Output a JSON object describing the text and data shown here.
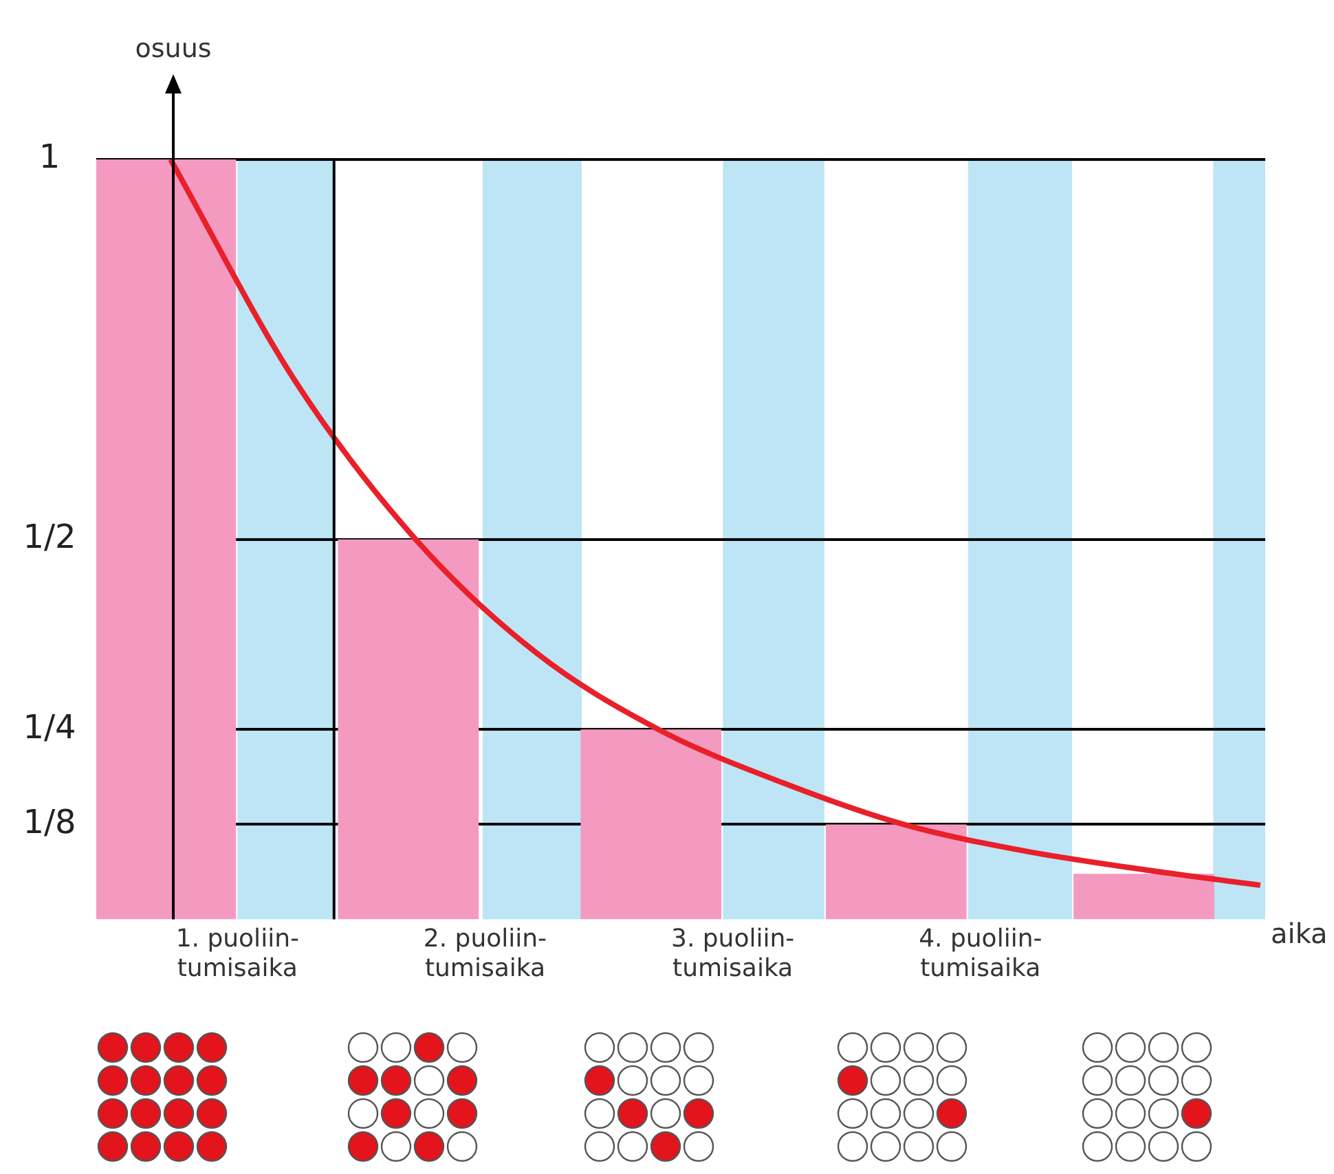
{
  "chart_data": {
    "type": "bar",
    "xlabel": "aika",
    "ylabel": "osuus",
    "xlim": [
      0.43,
      5.15
    ],
    "ylim": [
      0,
      1
    ],
    "xticks": [
      {
        "value": 1,
        "label": "1. puoliin-\ntumisaika"
      },
      {
        "value": 2,
        "label": "2. puoliin-\ntumisaika"
      },
      {
        "value": 3,
        "label": "3. puoliin-\ntumisaika"
      },
      {
        "value": 4,
        "label": "4. puoliin-\ntumisaika"
      }
    ],
    "yticks": [
      {
        "value": 0.125,
        "label": "1/8"
      },
      {
        "value": 0.25,
        "label": "1/4"
      },
      {
        "value": 0.5,
        "label": "1/2"
      },
      1
    ],
    "grid": "y",
    "legend": false,
    "marker": "none",
    "series": [
      {
        "color": "#f49ac1",
        "x": [
          0.71,
          1.69,
          2.67,
          3.66,
          4.66
        ],
        "values": [
          1,
          0.5,
          0.25,
          0.125,
          0.06
        ]
      },
      {
        "type": "line",
        "color": "#e8202a",
        "x": [
          0.73,
          1.23,
          1.72,
          2.21,
          2.7,
          3.2,
          3.69,
          4.18,
          4.67,
          5.13
        ],
        "values": [
          1,
          0.71,
          0.5,
          0.35,
          0.25,
          0.18,
          0.125,
          0.09,
          0.065,
          0.045
        ]
      }
    ],
    "bands": [
      {
        "axis": "x",
        "from": 1.0,
        "to": 1.39,
        "color": "#bde5f6"
      },
      {
        "axis": "x",
        "from": 1.99,
        "to": 2.39,
        "color": "#bde5f6"
      },
      {
        "axis": "x",
        "from": 2.96,
        "to": 3.37,
        "color": "#bde5f6"
      },
      {
        "axis": "x",
        "from": 3.95,
        "to": 4.37,
        "color": "#bde5f6"
      },
      {
        "axis": "x",
        "from": 4.94,
        "to": 5.15,
        "color": "#bde5f6"
      }
    ],
    "ref_lines": [
      {
        "axis": "x",
        "value": 1.39,
        "color": "#000000"
      }
    ]
  }
}
